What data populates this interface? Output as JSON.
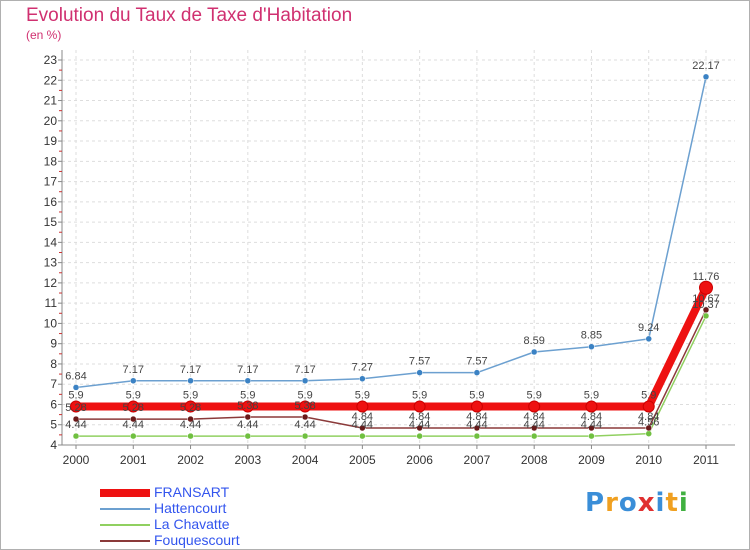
{
  "chart_data": {
    "type": "line",
    "title": "Evolution du Taux de Taxe d'Habitation",
    "ylabel": "(en %)",
    "xlabel": "",
    "x": [
      "2000",
      "2001",
      "2002",
      "2003",
      "2004",
      "2005",
      "2006",
      "2007",
      "2008",
      "2009",
      "2010",
      "2011"
    ],
    "ylim": [
      4,
      23
    ],
    "yticks": [
      4,
      5,
      6,
      7,
      8,
      9,
      10,
      11,
      12,
      13,
      14,
      15,
      16,
      17,
      18,
      19,
      20,
      21,
      22,
      23
    ],
    "series": [
      {
        "name": "Hattencourt",
        "color": "#6ca0d0",
        "marker": "#3b82c4",
        "width": 1.5,
        "values": [
          6.84,
          7.17,
          7.17,
          7.17,
          7.17,
          7.27,
          7.57,
          7.57,
          8.59,
          8.85,
          9.24,
          22.17
        ],
        "labels": [
          "6.84",
          "7.17",
          "7.17",
          "7.17",
          "7.17",
          "7.27",
          "7.57",
          "7.57",
          "8.59",
          "8.85",
          "9.24",
          "22.17"
        ]
      },
      {
        "name": "La Chavatte",
        "color": "#90d060",
        "marker": "#70c040",
        "width": 1.5,
        "values": [
          4.44,
          4.44,
          4.44,
          4.44,
          4.44,
          4.44,
          4.44,
          4.44,
          4.44,
          4.44,
          4.56,
          10.37
        ],
        "labels": [
          "4.44",
          "4.44",
          "4.44",
          "4.44",
          "4.44",
          "4.44",
          "4.44",
          "4.44",
          "4.44",
          "4.44",
          "4.56",
          "10.37"
        ]
      },
      {
        "name": "Fouquescourt",
        "color": "#8b3a3a",
        "marker": "#6a1a1a",
        "width": 1.5,
        "values": [
          5.28,
          5.28,
          5.28,
          5.38,
          5.38,
          4.84,
          4.84,
          4.84,
          4.84,
          4.84,
          4.84,
          10.67
        ],
        "labels": [
          "5.28",
          "5.28",
          "5.28",
          "5.38",
          "5.38",
          "4.84",
          "4.84",
          "4.84",
          "4.84",
          "4.84",
          "4.84",
          "10.67"
        ]
      },
      {
        "name": "FRANSART",
        "color": "#ee1111",
        "marker": "#ee1111",
        "width": 8,
        "values": [
          5.9,
          5.9,
          5.9,
          5.9,
          5.9,
          5.9,
          5.9,
          5.9,
          5.9,
          5.9,
          5.9,
          11.76
        ],
        "labels": [
          "5.9",
          "5.9",
          "5.9",
          "5.9",
          "5.9",
          "5.9",
          "5.9",
          "5.9",
          "5.9",
          "5.9",
          "5.9",
          "11.76"
        ]
      }
    ]
  },
  "legend": {
    "items": [
      {
        "name": "FRANSART",
        "color": "#ee1111",
        "text_color": "#3355ee",
        "thickness": 8
      },
      {
        "name": "Hattencourt",
        "color": "#6ca0d0",
        "text_color": "#3355ee",
        "thickness": 2
      },
      {
        "name": "La Chavatte",
        "color": "#90d060",
        "text_color": "#3355ee",
        "thickness": 2
      },
      {
        "name": "Fouquescourt",
        "color": "#8b3a3a",
        "text_color": "#3355ee",
        "thickness": 2
      }
    ]
  },
  "logo": {
    "letters": [
      "P",
      "r",
      "o",
      "x",
      "i",
      "t",
      "i"
    ],
    "colors": [
      "#3a8ed8",
      "#f0a020",
      "#3a8ed8",
      "#e03030",
      "#3a8ed8",
      "#f0a020",
      "#40b040"
    ]
  }
}
